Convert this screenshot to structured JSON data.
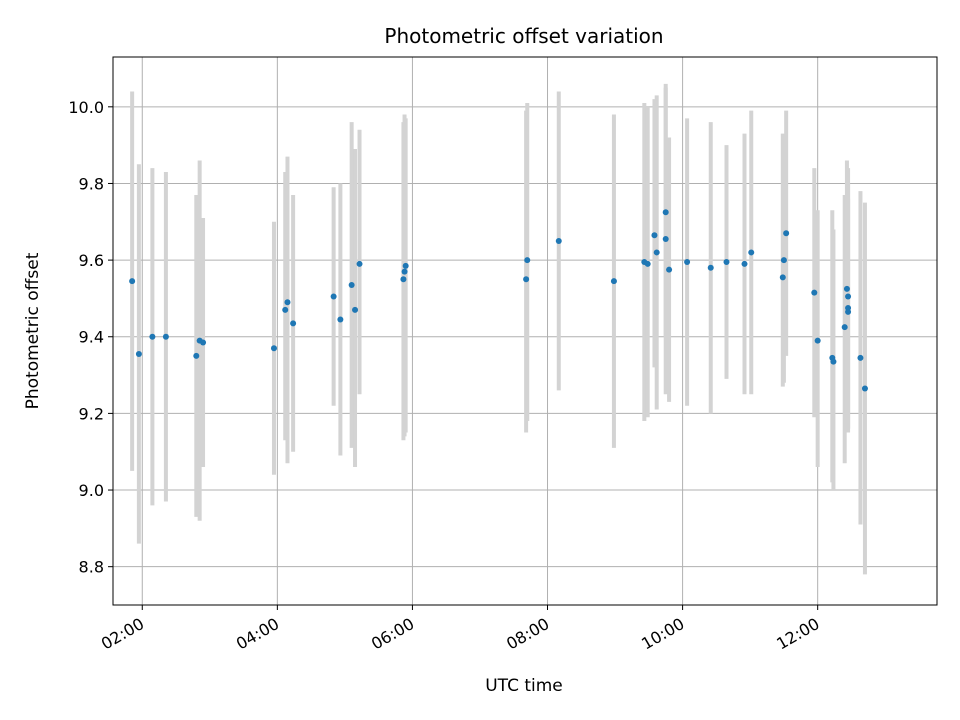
{
  "chart_data": {
    "type": "scatter",
    "title": "Photometric offset variation",
    "xlabel": "UTC time",
    "ylabel": "Photometric offset",
    "x_ticks": [
      "02:00",
      "04:00",
      "06:00",
      "08:00",
      "10:00",
      "12:00"
    ],
    "y_ticks": [
      "8.8",
      "9.0",
      "9.2",
      "9.4",
      "9.6",
      "9.8",
      "10.0"
    ],
    "xlim": [
      "01:34",
      "13:46"
    ],
    "ylim": [
      8.7,
      10.13
    ],
    "grid": true,
    "colors": {
      "point": "#1f77b4",
      "errorbar": "#d3d3d3",
      "grid": "#b0b0b0"
    },
    "points": [
      {
        "x": "01:51",
        "y": 9.545,
        "ylo": 9.05,
        "yhi": 10.04
      },
      {
        "x": "01:57",
        "y": 9.355,
        "ylo": 8.86,
        "yhi": 9.85
      },
      {
        "x": "02:09",
        "y": 9.4,
        "ylo": 8.96,
        "yhi": 9.84
      },
      {
        "x": "02:21",
        "y": 9.4,
        "ylo": 8.97,
        "yhi": 9.83
      },
      {
        "x": "02:48",
        "y": 9.35,
        "ylo": 8.93,
        "yhi": 9.77
      },
      {
        "x": "02:51",
        "y": 9.39,
        "ylo": 8.92,
        "yhi": 9.86
      },
      {
        "x": "02:54",
        "y": 9.385,
        "ylo": 9.06,
        "yhi": 9.71
      },
      {
        "x": "03:57",
        "y": 9.37,
        "ylo": 9.04,
        "yhi": 9.7
      },
      {
        "x": "04:07",
        "y": 9.47,
        "ylo": 9.13,
        "yhi": 9.83
      },
      {
        "x": "04:09",
        "y": 9.49,
        "ylo": 9.07,
        "yhi": 9.87
      },
      {
        "x": "04:14",
        "y": 9.435,
        "ylo": 9.1,
        "yhi": 9.77
      },
      {
        "x": "04:50",
        "y": 9.505,
        "ylo": 9.22,
        "yhi": 9.79
      },
      {
        "x": "04:56",
        "y": 9.445,
        "ylo": 9.09,
        "yhi": 9.8
      },
      {
        "x": "05:06",
        "y": 9.535,
        "ylo": 9.11,
        "yhi": 9.96
      },
      {
        "x": "05:09",
        "y": 9.47,
        "ylo": 9.06,
        "yhi": 9.89
      },
      {
        "x": "05:13",
        "y": 9.59,
        "ylo": 9.25,
        "yhi": 9.94
      },
      {
        "x": "05:52",
        "y": 9.55,
        "ylo": 9.13,
        "yhi": 9.96
      },
      {
        "x": "05:53",
        "y": 9.57,
        "ylo": 9.14,
        "yhi": 9.98
      },
      {
        "x": "05:54",
        "y": 9.585,
        "ylo": 9.15,
        "yhi": 9.97
      },
      {
        "x": "07:41",
        "y": 9.55,
        "ylo": 9.15,
        "yhi": 9.99
      },
      {
        "x": "07:42",
        "y": 9.6,
        "ylo": 9.18,
        "yhi": 10.01
      },
      {
        "x": "08:10",
        "y": 9.65,
        "ylo": 9.26,
        "yhi": 10.04
      },
      {
        "x": "08:59",
        "y": 9.545,
        "ylo": 9.11,
        "yhi": 9.98
      },
      {
        "x": "09:26",
        "y": 9.595,
        "ylo": 9.18,
        "yhi": 10.01
      },
      {
        "x": "09:29",
        "y": 9.59,
        "ylo": 9.19,
        "yhi": 10.0
      },
      {
        "x": "09:35",
        "y": 9.665,
        "ylo": 9.32,
        "yhi": 10.02
      },
      {
        "x": "09:37",
        "y": 9.62,
        "ylo": 9.21,
        "yhi": 10.03
      },
      {
        "x": "09:45",
        "y": 9.725,
        "ylo": 9.4,
        "yhi": 10.05
      },
      {
        "x": "09:45",
        "y": 9.655,
        "ylo": 9.25,
        "yhi": 10.06
      },
      {
        "x": "09:48",
        "y": 9.575,
        "ylo": 9.23,
        "yhi": 9.92
      },
      {
        "x": "10:04",
        "y": 9.595,
        "ylo": 9.22,
        "yhi": 9.97
      },
      {
        "x": "10:25",
        "y": 9.58,
        "ylo": 9.2,
        "yhi": 9.96
      },
      {
        "x": "10:39",
        "y": 9.595,
        "ylo": 9.29,
        "yhi": 9.9
      },
      {
        "x": "10:55",
        "y": 9.59,
        "ylo": 9.25,
        "yhi": 9.93
      },
      {
        "x": "11:01",
        "y": 9.62,
        "ylo": 9.25,
        "yhi": 9.99
      },
      {
        "x": "11:29",
        "y": 9.555,
        "ylo": 9.27,
        "yhi": 9.93
      },
      {
        "x": "11:30",
        "y": 9.6,
        "ylo": 9.28,
        "yhi": 9.85
      },
      {
        "x": "11:32",
        "y": 9.67,
        "ylo": 9.35,
        "yhi": 9.99
      },
      {
        "x": "11:57",
        "y": 9.515,
        "ylo": 9.19,
        "yhi": 9.84
      },
      {
        "x": "12:00",
        "y": 9.39,
        "ylo": 9.06,
        "yhi": 9.73
      },
      {
        "x": "12:13",
        "y": 9.345,
        "ylo": 9.02,
        "yhi": 9.73
      },
      {
        "x": "12:14",
        "y": 9.335,
        "ylo": 9.0,
        "yhi": 9.68
      },
      {
        "x": "12:24",
        "y": 9.425,
        "ylo": 9.07,
        "yhi": 9.77
      },
      {
        "x": "12:26",
        "y": 9.525,
        "ylo": 9.2,
        "yhi": 9.86
      },
      {
        "x": "12:27",
        "y": 9.505,
        "ylo": 9.16,
        "yhi": 9.84
      },
      {
        "x": "12:27",
        "y": 9.475,
        "ylo": 9.15,
        "yhi": 9.8
      },
      {
        "x": "12:27",
        "y": 9.465,
        "ylo": 9.16,
        "yhi": 9.76
      },
      {
        "x": "12:38",
        "y": 9.345,
        "ylo": 8.91,
        "yhi": 9.78
      },
      {
        "x": "12:42",
        "y": 9.265,
        "ylo": 8.78,
        "yhi": 9.75
      }
    ]
  }
}
